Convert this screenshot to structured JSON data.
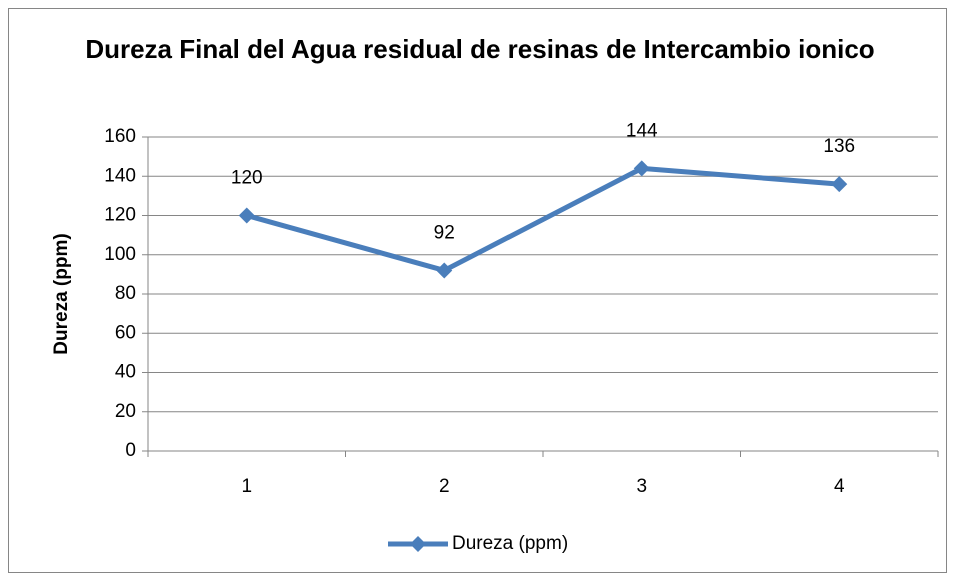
{
  "chart_data": {
    "type": "line",
    "title": "Dureza Final del Agua residual de resinas de Intercambio ionico",
    "y_label": "Dureza (ppm)",
    "categories": [
      "1",
      "2",
      "3",
      "4"
    ],
    "series": [
      {
        "name": "Dureza (ppm)",
        "color": "#4a7ebb",
        "values": [
          120,
          92,
          144,
          136
        ]
      }
    ],
    "ylim": [
      0,
      160
    ],
    "yticks": [
      0,
      20,
      40,
      60,
      80,
      100,
      120,
      140,
      160
    ],
    "grid": true,
    "legend": "bottom",
    "data_labels": true
  }
}
